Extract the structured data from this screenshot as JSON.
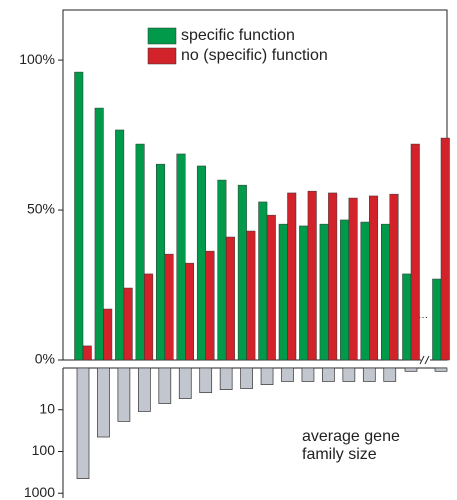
{
  "chart_data": [
    {
      "type": "bar",
      "categories": [
        null,
        null,
        null,
        null,
        null,
        null,
        null,
        null,
        null,
        null,
        null,
        null,
        null,
        null,
        null,
        null,
        null,
        null
      ],
      "series": [
        {
          "name": "specific function",
          "color": "#009a4a",
          "values": [
            96,
            84,
            76.7,
            72,
            65.3,
            68.7,
            64.7,
            60,
            58.3,
            52.7,
            45.3,
            44.7,
            45.3,
            46.7,
            46,
            45.3,
            28.7,
            27
          ]
        },
        {
          "name": "no (specific) function",
          "color": "#d2232a",
          "values": [
            4.7,
            17,
            24,
            28.7,
            35.3,
            32.3,
            36.3,
            41,
            43,
            48.3,
            55.7,
            56.3,
            55.7,
            54,
            54.7,
            55.3,
            72,
            74
          ]
        }
      ],
      "ylim": [
        0,
        116.7
      ],
      "yticks": [
        {
          "value": 0,
          "label": "0%"
        },
        {
          "value": 50,
          "label": "50%"
        },
        {
          "value": 100,
          "label": "100%"
        }
      ]
    },
    {
      "type": "bar",
      "categories": [
        null,
        null,
        null,
        null,
        null,
        null,
        null,
        null,
        null,
        null,
        null,
        null,
        null,
        null,
        null,
        null,
        null,
        null
      ],
      "values": [
        446,
        45,
        19,
        11,
        7.1,
        5.4,
        3.9,
        3.3,
        3.1,
        2.5,
        2.1,
        2.1,
        2.1,
        2.1,
        2.1,
        2.1,
        1.2,
        1.2
      ],
      "color": "#c2c6ce",
      "log_scale": true,
      "inverted": true,
      "ylim": [
        1,
        1300
      ],
      "yticks": [
        10,
        100,
        1000
      ],
      "annotation": [
        "average gene",
        "family size"
      ]
    }
  ]
}
